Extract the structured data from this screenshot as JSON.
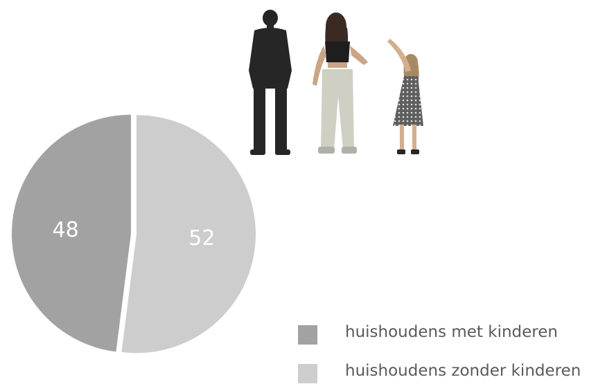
{
  "chart_data": {
    "type": "pie",
    "title": "",
    "slices": [
      {
        "label": "huishoudens met kinderen",
        "value": 48,
        "color": "#a2a2a2"
      },
      {
        "label": "huishoudens zonder kinderen",
        "value": 52,
        "color": "#cdcdcd"
      }
    ],
    "data_labels": [
      "48",
      "52"
    ],
    "legend_position": "bottom-right"
  },
  "colors": {
    "label_text": "#ffffff",
    "legend_text": "#5a5a5a",
    "background": "#ffffff",
    "people_silhouette": "#262626"
  }
}
